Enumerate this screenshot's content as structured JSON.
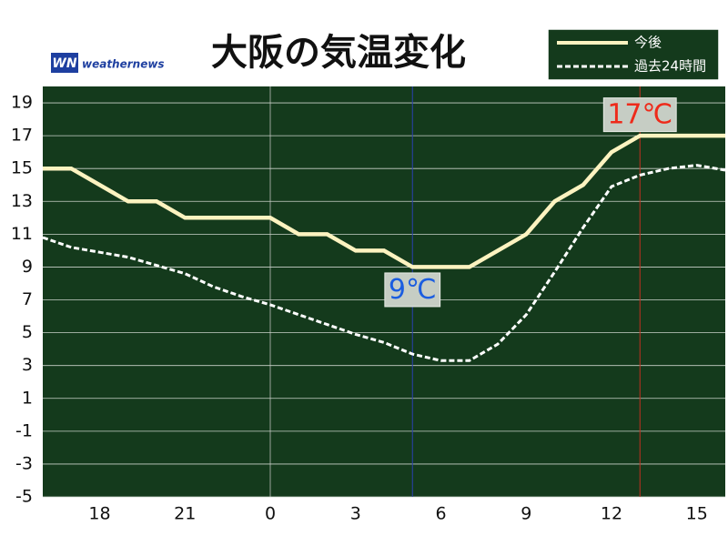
{
  "chart_data": {
    "type": "line",
    "title": "大阪の気温変化",
    "logo": "WN",
    "brand": "weathernews",
    "categories": [
      null,
      null,
      "18",
      null,
      null,
      "21",
      null,
      null,
      "0",
      null,
      null,
      "3",
      null,
      null,
      "6",
      null,
      null,
      "9",
      null,
      null,
      "12",
      null,
      null,
      "15",
      null
    ],
    "series": [
      {
        "name": "今後",
        "color": "#fdf3c0",
        "style": "solid",
        "values": [
          15,
          15,
          14,
          13,
          13,
          12,
          12,
          12,
          12,
          11,
          11,
          10,
          10,
          9,
          9,
          9,
          10,
          11,
          13,
          14,
          16,
          17,
          17,
          17,
          17
        ]
      },
      {
        "name": "過去24時間",
        "color": "#ffffff",
        "style": "dashed",
        "values": [
          10.8,
          10.2,
          9.9,
          9.6,
          9.1,
          8.6,
          7.8,
          7.2,
          6.7,
          6.1,
          5.5,
          4.9,
          4.4,
          3.7,
          3.3,
          3.3,
          4.3,
          6.1,
          8.7,
          11.4,
          13.9,
          14.6,
          15.0,
          15.2,
          14.9
        ]
      }
    ],
    "annotations": [
      {
        "label": "9℃",
        "value": 9,
        "color": "#1a5de0",
        "line_color": "#2a3fb0",
        "position": "below"
      },
      {
        "label": "17℃",
        "value": 17,
        "color": "#ee2a1a",
        "line_color": "#c03020",
        "position": "above"
      }
    ],
    "ylim": [
      -5,
      20
    ],
    "yticks": [
      -5,
      -3,
      -1,
      1,
      3,
      5,
      7,
      9,
      11,
      13,
      15,
      17,
      19
    ],
    "grid": true,
    "legend": "top-right"
  }
}
